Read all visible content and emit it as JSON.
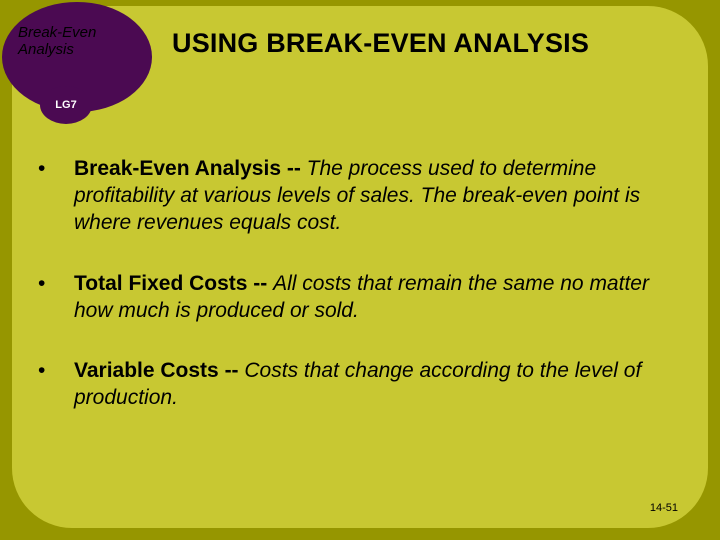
{
  "badge": {
    "topic_line1": "Break-Even",
    "topic_line2": "Analysis",
    "lg": "LG7"
  },
  "title": "USING BREAK-EVEN ANALYSIS",
  "bullets": [
    {
      "term": "Break-Even Analysis -- ",
      "def": "The process used to determine profitability at various levels of sales. The break-even point is where revenues equals cost."
    },
    {
      "term": "Total Fixed Costs -- ",
      "def": "All costs that remain the same no matter how much is produced or sold."
    },
    {
      "term": "Variable Costs -- ",
      "def": "Costs that change according to the level of production."
    }
  ],
  "page_number": "14-51",
  "colors": {
    "outer_bg": "#969600",
    "slide_bg": "#c8c832",
    "badge": "#4b0a52",
    "text": "#000000",
    "lg_text": "#ffffff"
  }
}
